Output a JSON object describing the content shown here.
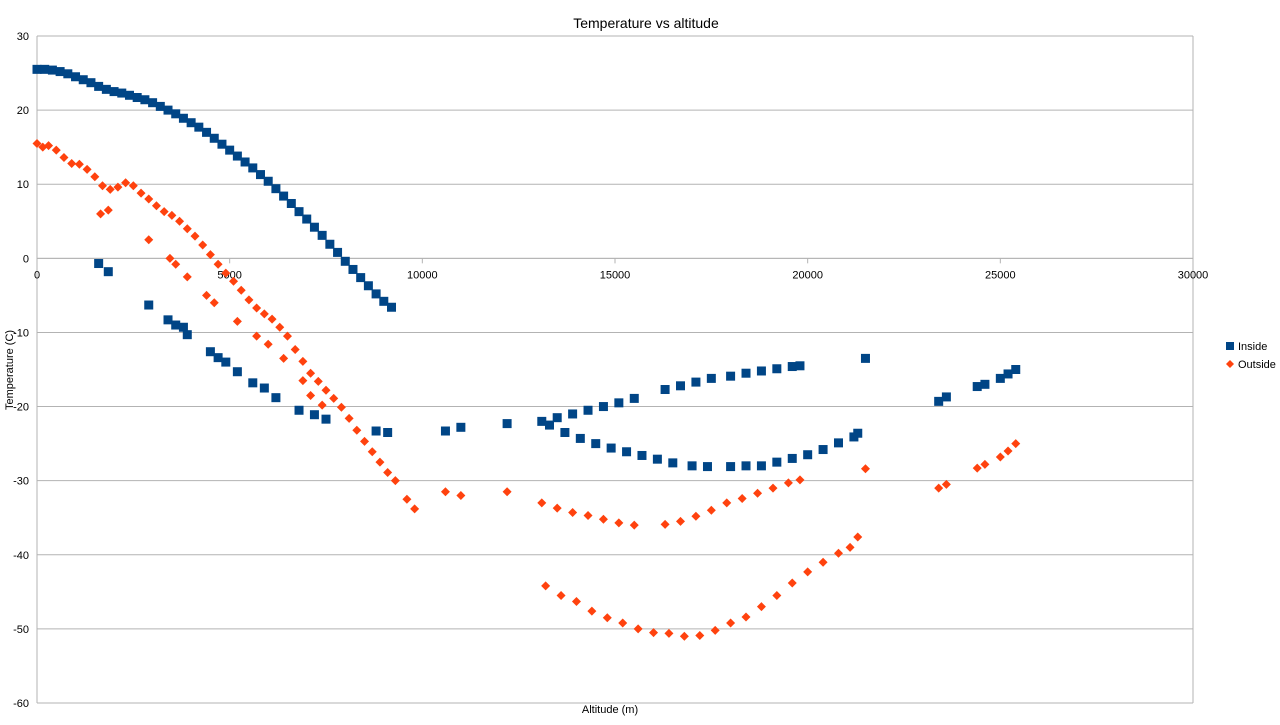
{
  "chart_data": {
    "type": "scatter",
    "title": "Temperature vs altitude",
    "xlabel": "Altitude (m)",
    "ylabel": "Temperature (C)",
    "xlim": [
      0,
      30000
    ],
    "ylim": [
      -60,
      30
    ],
    "x_ticks": [
      0,
      5000,
      10000,
      15000,
      20000,
      25000,
      30000
    ],
    "y_ticks": [
      -60,
      -50,
      -40,
      -30,
      -20,
      -10,
      0,
      10,
      20,
      30
    ],
    "x_tick_labels": [
      "0",
      "5000",
      "10000",
      "15000",
      "20000",
      "25000",
      "30000"
    ],
    "y_tick_labels": [
      "-60",
      "-50",
      "-40",
      "-30",
      "-20",
      "-10",
      "0",
      "10",
      "20",
      "30"
    ],
    "grid": "horizontal",
    "legend_position": "right",
    "series": [
      {
        "name": "Inside",
        "color": "#004586",
        "marker": "square",
        "points": [
          [
            0,
            25.5
          ],
          [
            200,
            25.5
          ],
          [
            400,
            25.4
          ],
          [
            600,
            25.2
          ],
          [
            800,
            24.9
          ],
          [
            1000,
            24.5
          ],
          [
            1200,
            24.1
          ],
          [
            1400,
            23.7
          ],
          [
            1600,
            23.2
          ],
          [
            1800,
            22.8
          ],
          [
            2000,
            22.5
          ],
          [
            2200,
            22.3
          ],
          [
            2400,
            22.0
          ],
          [
            2600,
            21.7
          ],
          [
            2800,
            21.4
          ],
          [
            3000,
            21.0
          ],
          [
            3200,
            20.5
          ],
          [
            3400,
            20.0
          ],
          [
            3600,
            19.5
          ],
          [
            3800,
            18.9
          ],
          [
            4000,
            18.3
          ],
          [
            4200,
            17.7
          ],
          [
            4400,
            17.0
          ],
          [
            4600,
            16.2
          ],
          [
            4800,
            15.4
          ],
          [
            5000,
            14.6
          ],
          [
            5200,
            13.8
          ],
          [
            5400,
            13.0
          ],
          [
            5600,
            12.2
          ],
          [
            5800,
            11.3
          ],
          [
            6000,
            10.4
          ],
          [
            6200,
            9.4
          ],
          [
            6400,
            8.4
          ],
          [
            6600,
            7.4
          ],
          [
            6800,
            6.3
          ],
          [
            7000,
            5.3
          ],
          [
            7200,
            4.2
          ],
          [
            7400,
            3.1
          ],
          [
            7600,
            1.9
          ],
          [
            7800,
            0.8
          ],
          [
            8000,
            -0.4
          ],
          [
            8200,
            -1.5
          ],
          [
            8400,
            -2.6
          ],
          [
            8600,
            -3.7
          ],
          [
            8800,
            -4.8
          ],
          [
            9000,
            -5.8
          ],
          [
            9200,
            -6.6
          ],
          [
            1600,
            -0.7
          ],
          [
            1850,
            -1.8
          ],
          [
            2900,
            -6.3
          ],
          [
            3400,
            -8.3
          ],
          [
            3600,
            -9.0
          ],
          [
            3800,
            -9.3
          ],
          [
            3900,
            -10.3
          ],
          [
            4500,
            -12.6
          ],
          [
            4700,
            -13.4
          ],
          [
            4900,
            -14.0
          ],
          [
            5200,
            -15.3
          ],
          [
            5600,
            -16.8
          ],
          [
            5900,
            -17.5
          ],
          [
            6200,
            -18.8
          ],
          [
            6800,
            -20.5
          ],
          [
            7200,
            -21.1
          ],
          [
            7500,
            -21.7
          ],
          [
            8800,
            -23.3
          ],
          [
            9100,
            -23.5
          ],
          [
            10600,
            -23.3
          ],
          [
            11000,
            -22.8
          ],
          [
            12200,
            -22.3
          ],
          [
            13100,
            -22.0
          ],
          [
            13500,
            -21.5
          ],
          [
            13900,
            -21.0
          ],
          [
            14300,
            -20.5
          ],
          [
            14700,
            -20.0
          ],
          [
            15100,
            -19.5
          ],
          [
            15500,
            -18.9
          ],
          [
            16300,
            -17.7
          ],
          [
            16700,
            -17.2
          ],
          [
            17100,
            -16.7
          ],
          [
            17500,
            -16.2
          ],
          [
            18000,
            -15.9
          ],
          [
            18400,
            -15.5
          ],
          [
            18800,
            -15.2
          ],
          [
            19200,
            -14.9
          ],
          [
            19600,
            -14.6
          ],
          [
            19800,
            -14.5
          ],
          [
            13300,
            -22.5
          ],
          [
            13700,
            -23.5
          ],
          [
            14100,
            -24.3
          ],
          [
            14500,
            -25.0
          ],
          [
            14900,
            -25.6
          ],
          [
            15300,
            -26.1
          ],
          [
            15700,
            -26.6
          ],
          [
            16100,
            -27.1
          ],
          [
            16500,
            -27.6
          ],
          [
            17000,
            -28.0
          ],
          [
            17400,
            -28.1
          ],
          [
            18000,
            -28.1
          ],
          [
            18400,
            -28.0
          ],
          [
            18800,
            -28.0
          ],
          [
            19200,
            -27.5
          ],
          [
            19600,
            -27.0
          ],
          [
            20000,
            -26.5
          ],
          [
            20400,
            -25.8
          ],
          [
            20800,
            -24.9
          ],
          [
            21200,
            -24.1
          ],
          [
            21300,
            -23.6
          ],
          [
            21500,
            -13.5
          ],
          [
            23400,
            -19.3
          ],
          [
            23600,
            -18.7
          ],
          [
            24400,
            -17.3
          ],
          [
            24600,
            -17.0
          ],
          [
            25000,
            -16.2
          ],
          [
            25200,
            -15.6
          ],
          [
            25400,
            -15.0
          ]
        ]
      },
      {
        "name": "Outside",
        "color": "#FF420E",
        "marker": "diamond",
        "points": [
          [
            0,
            15.5
          ],
          [
            150,
            15.0
          ],
          [
            300,
            15.2
          ],
          [
            500,
            14.6
          ],
          [
            700,
            13.6
          ],
          [
            900,
            12.8
          ],
          [
            1100,
            12.7
          ],
          [
            1300,
            12.0
          ],
          [
            1500,
            11.0
          ],
          [
            1700,
            9.8
          ],
          [
            1900,
            9.3
          ],
          [
            2100,
            9.6
          ],
          [
            2300,
            10.2
          ],
          [
            2500,
            9.8
          ],
          [
            2700,
            8.8
          ],
          [
            2900,
            8.0
          ],
          [
            3100,
            7.1
          ],
          [
            3300,
            6.3
          ],
          [
            3500,
            5.8
          ],
          [
            3700,
            5.0
          ],
          [
            3900,
            4.0
          ],
          [
            4100,
            3.0
          ],
          [
            4300,
            1.8
          ],
          [
            4500,
            0.5
          ],
          [
            4700,
            -0.8
          ],
          [
            4900,
            -2.0
          ],
          [
            5100,
            -3.1
          ],
          [
            5300,
            -4.3
          ],
          [
            5500,
            -5.6
          ],
          [
            5700,
            -6.7
          ],
          [
            5900,
            -7.5
          ],
          [
            6100,
            -8.2
          ],
          [
            6300,
            -9.3
          ],
          [
            6500,
            -10.5
          ],
          [
            6700,
            -12.3
          ],
          [
            6900,
            -13.9
          ],
          [
            7100,
            -15.5
          ],
          [
            7300,
            -16.6
          ],
          [
            7500,
            -17.8
          ],
          [
            7700,
            -18.9
          ],
          [
            7900,
            -20.1
          ],
          [
            8100,
            -21.6
          ],
          [
            8300,
            -23.2
          ],
          [
            8500,
            -24.7
          ],
          [
            8700,
            -26.1
          ],
          [
            8900,
            -27.5
          ],
          [
            9100,
            -28.9
          ],
          [
            9300,
            -30.0
          ],
          [
            1650,
            6.0
          ],
          [
            1850,
            6.5
          ],
          [
            2900,
            2.5
          ],
          [
            3450,
            0.0
          ],
          [
            3600,
            -0.8
          ],
          [
            3900,
            -2.5
          ],
          [
            4400,
            -5.0
          ],
          [
            4600,
            -6.0
          ],
          [
            5200,
            -8.5
          ],
          [
            5700,
            -10.5
          ],
          [
            6000,
            -11.6
          ],
          [
            6400,
            -13.5
          ],
          [
            6900,
            -16.5
          ],
          [
            7100,
            -18.5
          ],
          [
            7400,
            -19.8
          ],
          [
            9600,
            -32.5
          ],
          [
            9800,
            -33.8
          ],
          [
            10600,
            -31.5
          ],
          [
            11000,
            -32.0
          ],
          [
            12200,
            -31.5
          ],
          [
            13100,
            -33.0
          ],
          [
            13500,
            -33.7
          ],
          [
            13900,
            -34.3
          ],
          [
            14300,
            -34.7
          ],
          [
            14700,
            -35.2
          ],
          [
            15100,
            -35.7
          ],
          [
            15500,
            -36.0
          ],
          [
            16300,
            -35.9
          ],
          [
            16700,
            -35.5
          ],
          [
            17100,
            -34.8
          ],
          [
            17500,
            -34.0
          ],
          [
            17900,
            -33.0
          ],
          [
            18300,
            -32.4
          ],
          [
            18700,
            -31.7
          ],
          [
            19100,
            -31.0
          ],
          [
            19500,
            -30.3
          ],
          [
            19800,
            -29.9
          ],
          [
            13200,
            -44.2
          ],
          [
            13600,
            -45.5
          ],
          [
            14000,
            -46.3
          ],
          [
            14400,
            -47.6
          ],
          [
            14800,
            -48.5
          ],
          [
            15200,
            -49.2
          ],
          [
            15600,
            -50.0
          ],
          [
            16000,
            -50.5
          ],
          [
            16400,
            -50.6
          ],
          [
            16800,
            -51.0
          ],
          [
            17200,
            -50.9
          ],
          [
            17600,
            -50.2
          ],
          [
            18000,
            -49.2
          ],
          [
            18400,
            -48.4
          ],
          [
            18800,
            -47.0
          ],
          [
            19200,
            -45.5
          ],
          [
            19600,
            -43.8
          ],
          [
            20000,
            -42.3
          ],
          [
            20400,
            -41.0
          ],
          [
            20800,
            -39.8
          ],
          [
            21100,
            -39.0
          ],
          [
            21300,
            -37.6
          ],
          [
            21500,
            -28.4
          ],
          [
            23400,
            -31.0
          ],
          [
            23600,
            -30.5
          ],
          [
            24400,
            -28.3
          ],
          [
            24600,
            -27.8
          ],
          [
            25000,
            -26.8
          ],
          [
            25200,
            -26.0
          ],
          [
            25400,
            -25.0
          ]
        ]
      }
    ]
  }
}
